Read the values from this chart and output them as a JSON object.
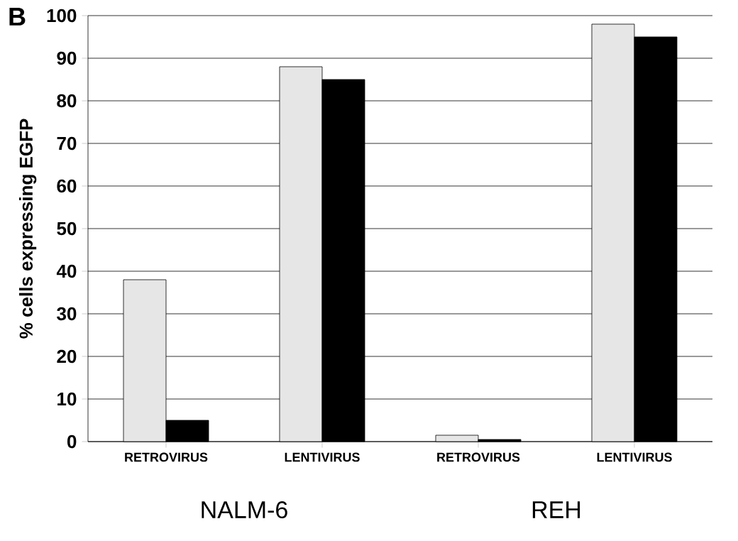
{
  "chart_data": {
    "type": "bar",
    "title": "B",
    "ylabel": "% cells expressing EGFP",
    "categories": [
      "RETROVIRUS",
      "LENTIVIRUS",
      "RETROVIRUS",
      "LENTIVIRUS"
    ],
    "series": [
      {
        "color": "#e6e6e6",
        "values": [
          38,
          88,
          1.5,
          98
        ]
      },
      {
        "color": "#000000",
        "values": [
          5,
          85,
          0.5,
          95
        ]
      }
    ],
    "ylim": [
      0,
      100
    ],
    "yticks": [
      0,
      10,
      20,
      30,
      40,
      50,
      60,
      70,
      80,
      90,
      100
    ],
    "grid": "y",
    "annotations": [
      "NALM-6",
      "REH"
    ]
  }
}
